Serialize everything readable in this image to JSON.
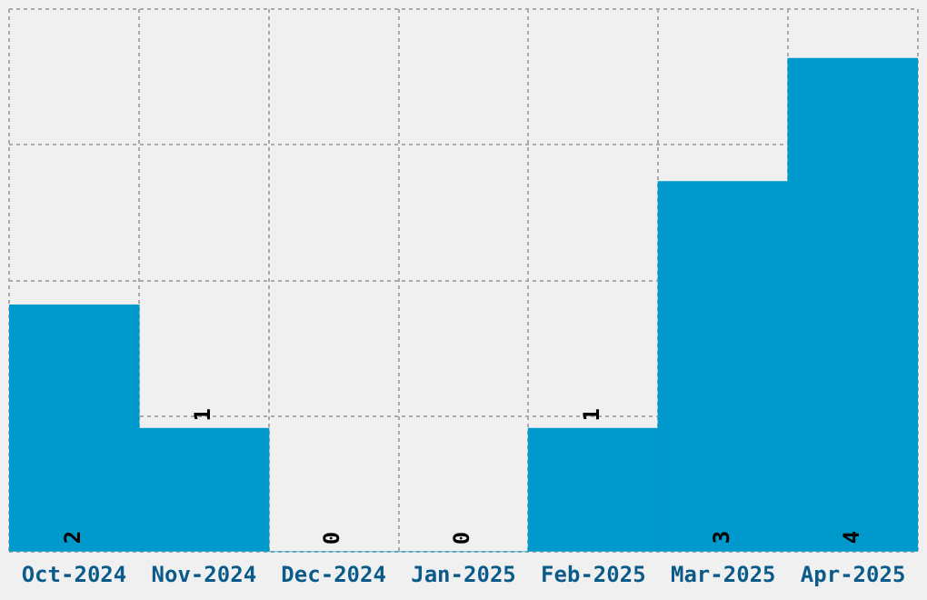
{
  "chart_data": {
    "type": "bar",
    "categories": [
      "Oct-2024",
      "Nov-2024",
      "Dec-2024",
      "Jan-2025",
      "Feb-2025",
      "Mar-2025",
      "Apr-2025"
    ],
    "values": [
      2,
      1,
      0,
      0,
      1,
      3,
      4
    ],
    "color": "#0099cc",
    "ylim": [
      0,
      4.4
    ],
    "yticks": [
      {
        "value": 0,
        "label": null
      },
      {
        "value": 1.1,
        "label": null
      },
      {
        "value": 2.2,
        "label": null
      },
      {
        "value": 3.3,
        "label": null
      },
      {
        "value": 4.4,
        "label": null
      }
    ],
    "grid": true,
    "tick_labels": "x",
    "data_labels": true
  }
}
